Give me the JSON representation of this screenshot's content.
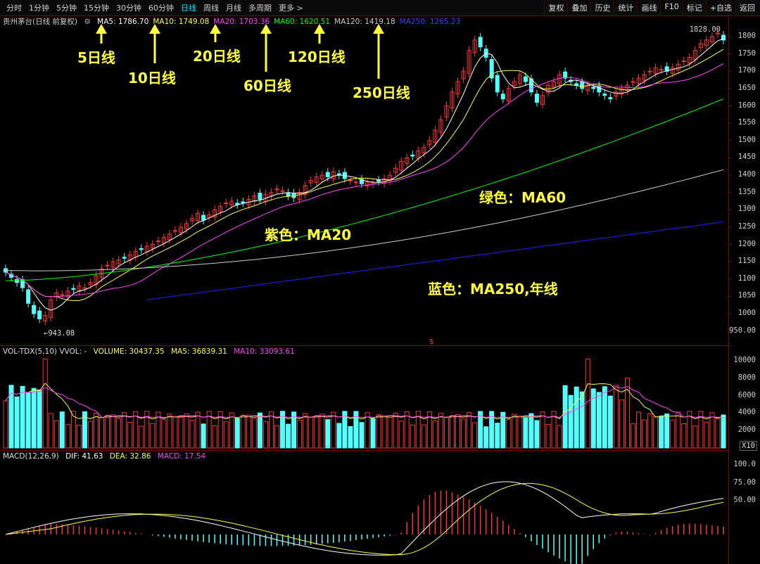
{
  "toolbar": {
    "tabs": [
      "分时",
      "1分钟",
      "5分钟",
      "15分钟",
      "30分钟",
      "60分钟",
      "日线",
      "周线",
      "月线",
      "多周期",
      "更多 >"
    ],
    "active_tab": "日线",
    "right_buttons": [
      "复权",
      "叠加",
      "历史",
      "统计",
      "画线",
      "F10",
      "标记",
      "+自选",
      "返回"
    ]
  },
  "main": {
    "title": "贵州茅台(日线 前复权)",
    "ma": [
      {
        "label": "MA5: 1786.70",
        "color": "#ffffff"
      },
      {
        "label": "MA10: 1749.08",
        "color": "#ffff3b"
      },
      {
        "label": "MA20: 1703.36",
        "color": "#ff40ff"
      },
      {
        "label": "MA60: 1620.51",
        "color": "#00ff00"
      },
      {
        "label": "MA120: 1419.18",
        "color": "#cccccc"
      },
      {
        "label": "MA250: 1265.23",
        "color": "#4040ff"
      }
    ],
    "y_ticks": [
      "1800",
      "1750",
      "1700",
      "1650",
      "1600",
      "1550",
      "1500",
      "1450",
      "1400",
      "1350",
      "1300",
      "1250",
      "1200",
      "1150",
      "1100",
      "1050",
      "1000",
      "950.00"
    ],
    "high_label": "1828.00",
    "low_label": "←943.08",
    "marker": "$"
  },
  "annotations": {
    "ma5": "5日线",
    "ma10": "10日线",
    "ma20": "20日线",
    "ma60": "60日线",
    "ma120": "120日线",
    "ma250": "250日线",
    "purple": "紫色：MA20",
    "green": "绿色：MA60",
    "blue": "蓝色：MA250,年线"
  },
  "volume": {
    "header": [
      "VOL-TDX(5,10) VVOL: -",
      "VOLUME: 30437.35",
      "MA5: 36839.31",
      "MA10: 33093.61"
    ],
    "y_ticks": [
      "10000",
      "8000",
      "6000",
      "4000",
      "2000"
    ],
    "unit": "X10"
  },
  "macd": {
    "header": [
      "MACD(12,26,9)",
      "DIF: 41.63",
      "DEA: 32.86",
      "MACD: 17.54"
    ],
    "y_ticks": [
      "100.0",
      "75.00",
      "50.00"
    ]
  },
  "colors": {
    "up": "#ff3232",
    "down": "#54ffff",
    "accent": "#ffff3b",
    "frame": "#800000"
  }
}
